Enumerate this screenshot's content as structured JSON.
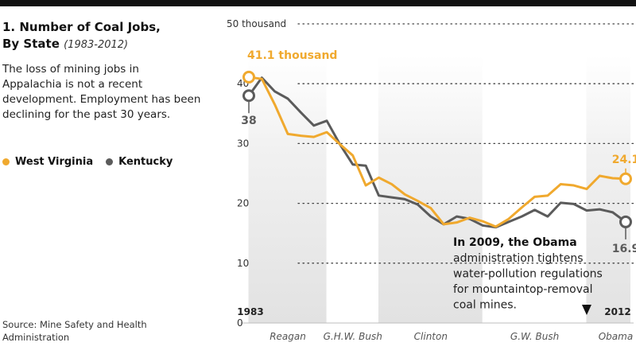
{
  "header": {
    "title": "1. Number of Coal Jobs,",
    "title_line2": "By State",
    "subtitle": "(1983-2012)",
    "description": "The loss of mining jobs in Appalachia is not a recent development. Employment has been declining for the past 30 years."
  },
  "legend": [
    {
      "label": "West Virginia",
      "color": "#f0a92e"
    },
    {
      "label": "Kentucky",
      "color": "#5b5b5b"
    }
  ],
  "source": "Source: Mine Safety and Health Administration",
  "chart_data": {
    "type": "line",
    "title": "Number of Coal Jobs, By State (1983-2012)",
    "ylabel": "thousand",
    "ylim": [
      0,
      50
    ],
    "xlim": [
      1983,
      2012
    ],
    "yticks": [
      {
        "value": 50,
        "label": "50 thousand"
      },
      {
        "value": 40,
        "label": "40"
      },
      {
        "value": 30,
        "label": "30"
      },
      {
        "value": 20,
        "label": "20"
      },
      {
        "value": 10,
        "label": "10"
      },
      {
        "value": 0,
        "label": "0"
      }
    ],
    "year_start_label": "1983",
    "year_end_label": "2012",
    "x": [
      1983,
      1984,
      1985,
      1986,
      1987,
      1988,
      1989,
      1990,
      1991,
      1992,
      1993,
      1994,
      1995,
      1996,
      1997,
      1998,
      1999,
      2000,
      2001,
      2002,
      2003,
      2004,
      2005,
      2006,
      2007,
      2008,
      2009,
      2010,
      2011,
      2012
    ],
    "series": [
      {
        "name": "West Virginia",
        "color": "#f0a92e",
        "values": [
          41.1,
          40.8,
          36.5,
          31.6,
          31.3,
          31.1,
          31.9,
          29.9,
          28.0,
          23.0,
          24.3,
          23.2,
          21.5,
          20.4,
          19.2,
          16.5,
          16.8,
          17.6,
          17.0,
          16.1,
          17.4,
          19.3,
          21.1,
          21.3,
          23.2,
          23.0,
          22.4,
          24.6,
          24.2,
          24.1
        ]
      },
      {
        "name": "Kentucky",
        "color": "#5b5b5b",
        "values": [
          38.0,
          41.0,
          38.7,
          37.5,
          35.2,
          33.0,
          33.8,
          29.9,
          26.5,
          26.3,
          21.3,
          21.0,
          20.7,
          19.8,
          17.8,
          16.5,
          17.8,
          17.4,
          16.3,
          16.0,
          16.9,
          17.8,
          18.9,
          17.8,
          20.1,
          19.9,
          18.8,
          19.0,
          18.5,
          16.9
        ]
      }
    ],
    "presidencies": [
      {
        "name": "Reagan",
        "start": 1983,
        "end": 1989,
        "shaded": true
      },
      {
        "name": "G.H.W. Bush",
        "start": 1989,
        "end": 1993,
        "shaded": false
      },
      {
        "name": "Clinton",
        "start": 1993,
        "end": 2001,
        "shaded": true
      },
      {
        "name": "G.W. Bush",
        "start": 2001,
        "end": 2009,
        "shaded": false
      },
      {
        "name": "Obama",
        "start": 2009,
        "end": 2012,
        "shaded": true
      }
    ],
    "annotations": [
      {
        "text": "41.1 thousand",
        "year": 1983,
        "value": 41.1,
        "series": "West Virginia"
      },
      {
        "text": "38",
        "year": 1983,
        "value": 38.0,
        "series": "Kentucky"
      },
      {
        "text": "24.1",
        "year": 2012,
        "value": 24.1,
        "series": "West Virginia"
      },
      {
        "text": "16.9",
        "year": 2012,
        "value": 16.9,
        "series": "Kentucky"
      }
    ],
    "callout": {
      "year": 2009,
      "bold": "In 2009, the Obama",
      "lines": [
        "administration tightens",
        "water-pollution regulations",
        "for mountaintop-removal",
        "coal mines."
      ]
    }
  }
}
